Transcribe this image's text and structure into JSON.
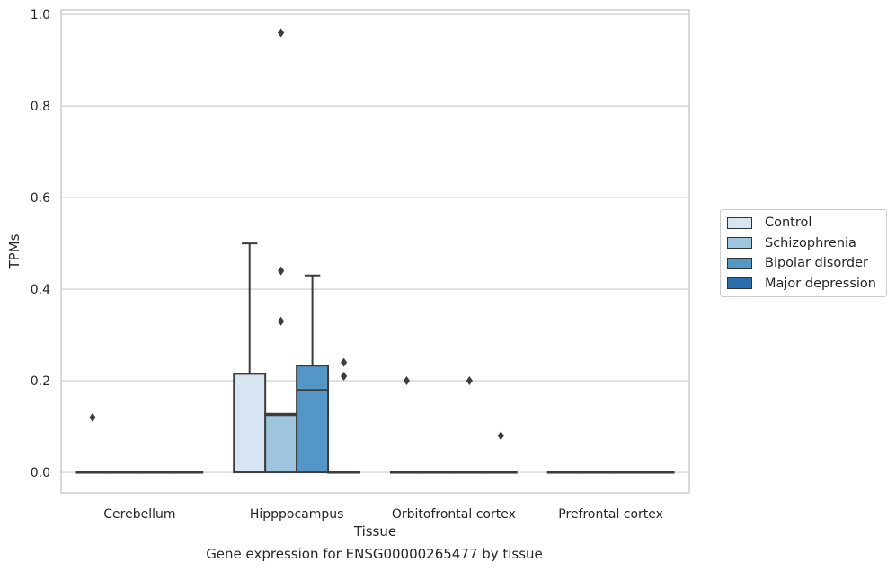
{
  "chart_data": {
    "type": "box",
    "title": "",
    "caption": "Gene expression for ENSG00000265477 by tissue",
    "xlabel": "Tissue",
    "ylabel": "TPMs",
    "ylim": [
      -0.045,
      1.01
    ],
    "yticks": [
      0.0,
      0.2,
      0.4,
      0.6,
      0.8,
      1.0
    ],
    "ytick_labels": [
      "0.0",
      "0.2",
      "0.4",
      "0.6",
      "0.8",
      "1.0"
    ],
    "grid": "horizontal",
    "legend_position": "right",
    "categories": [
      "Cerebellum",
      "Hipppocampus",
      "Orbitofrontal cortex",
      "Prefrontal cortex"
    ],
    "series": [
      {
        "name": "Control",
        "color": "#d7e5f3",
        "boxes": [
          {
            "q1": 0,
            "median": 0,
            "q3": 0,
            "whisker_low": 0,
            "whisker_high": 0,
            "outliers": [
              0.12
            ]
          },
          {
            "q1": 0,
            "median": 0,
            "q3": 0.215,
            "whisker_low": 0,
            "whisker_high": 0.5,
            "outliers": []
          },
          {
            "q1": 0,
            "median": 0,
            "q3": 0,
            "whisker_low": 0,
            "whisker_high": 0,
            "outliers": [
              0.2
            ]
          },
          {
            "q1": 0,
            "median": 0,
            "q3": 0,
            "whisker_low": 0,
            "whisker_high": 0,
            "outliers": []
          }
        ]
      },
      {
        "name": "Schizophrenia",
        "color": "#9dc5dd",
        "boxes": [
          {
            "q1": 0,
            "median": 0,
            "q3": 0,
            "whisker_low": 0,
            "whisker_high": 0,
            "outliers": []
          },
          {
            "q1": 0,
            "median": 0.125,
            "q3": 0.128,
            "whisker_low": 0,
            "whisker_high": 0.128,
            "outliers": [
              0.96,
              0.44,
              0.33
            ]
          },
          {
            "q1": 0,
            "median": 0,
            "q3": 0,
            "whisker_low": 0,
            "whisker_high": 0,
            "outliers": []
          },
          {
            "q1": 0,
            "median": 0,
            "q3": 0,
            "whisker_low": 0,
            "whisker_high": 0,
            "outliers": []
          }
        ]
      },
      {
        "name": "Bipolar disorder",
        "color": "#5496c5",
        "boxes": [
          {
            "q1": 0,
            "median": 0,
            "q3": 0,
            "whisker_low": 0,
            "whisker_high": 0,
            "outliers": []
          },
          {
            "q1": 0,
            "median": 0.18,
            "q3": 0.233,
            "whisker_low": 0,
            "whisker_high": 0.43,
            "outliers": []
          },
          {
            "q1": 0,
            "median": 0,
            "q3": 0,
            "whisker_low": 0,
            "whisker_high": 0,
            "outliers": [
              0.2
            ]
          },
          {
            "q1": 0,
            "median": 0,
            "q3": 0,
            "whisker_low": 0,
            "whisker_high": 0,
            "outliers": []
          }
        ]
      },
      {
        "name": "Major depression",
        "color": "#2a6ead",
        "boxes": [
          {
            "q1": 0,
            "median": 0,
            "q3": 0,
            "whisker_low": 0,
            "whisker_high": 0,
            "outliers": []
          },
          {
            "q1": 0,
            "median": 0,
            "q3": 0,
            "whisker_low": 0,
            "whisker_high": 0,
            "outliers": [
              0.24,
              0.21
            ]
          },
          {
            "q1": 0,
            "median": 0,
            "q3": 0,
            "whisker_low": 0,
            "whisker_high": 0,
            "outliers": [
              0.08
            ]
          },
          {
            "q1": 0,
            "median": 0,
            "q3": 0,
            "whisker_low": 0,
            "whisker_high": 0,
            "outliers": []
          }
        ]
      }
    ]
  }
}
